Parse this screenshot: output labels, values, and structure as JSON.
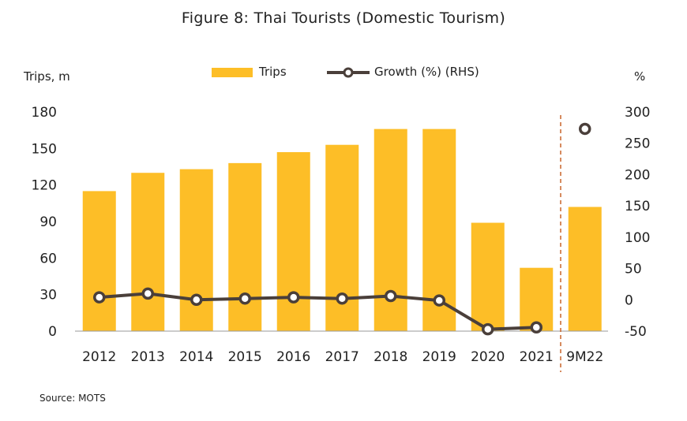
{
  "chart_data": {
    "type": "bar",
    "title": "Figure 8: Thai Tourists (Domestic Tourism)",
    "categories": [
      "2012",
      "2013",
      "2014",
      "2015",
      "2016",
      "2017",
      "2018",
      "2019",
      "2020",
      "2021",
      "9M22"
    ],
    "series": [
      {
        "name": "Trips",
        "type": "bar",
        "axis": "left",
        "color": "#FDBE27",
        "values": [
          115,
          130,
          133,
          138,
          147,
          153,
          166,
          166,
          89,
          52,
          102
        ]
      },
      {
        "name": "Growth (%) (RHS)",
        "type": "line",
        "axis": "right",
        "color": "#4A3F3A",
        "values": [
          4,
          10,
          0,
          2,
          4,
          2,
          6,
          -1,
          -47,
          -44,
          273
        ]
      }
    ],
    "ylabel": "Trips, m",
    "ylim": [
      0,
      180
    ],
    "yticks": [
      0,
      30,
      60,
      90,
      120,
      150,
      180
    ],
    "y2label": "%",
    "y2lim": [
      -50,
      300
    ],
    "y2ticks": [
      -50,
      0,
      50,
      100,
      150,
      200,
      250,
      300
    ],
    "legend_position": "top-center",
    "separator_before": "9M22",
    "separator_color": "#C8652A",
    "grid": false
  },
  "source": "Source: MOTS"
}
